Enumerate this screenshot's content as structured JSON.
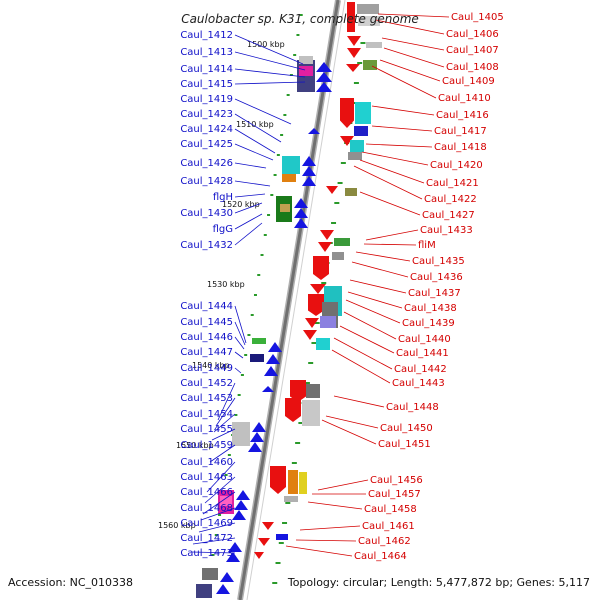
{
  "title": "Caulobacter sp. K31, complete genome",
  "accession": "Accession: NC_010338",
  "topology": "Topology: circular; Length: 5,477,872 bp; Genes: 5,117",
  "colors": {
    "left_label": "#1010c8",
    "right_label": "#d40000",
    "backbone": "#888888",
    "tick": "#2a9a2a",
    "blue_gene": "#1515e0",
    "red_gene": "#e81010"
  },
  "kbp_markers": [
    "1500 kbp",
    "1510 kbp",
    "1520 kbp",
    "1530 kbp",
    "1540 kbp",
    "1550 kbp",
    "1560 kbp"
  ],
  "left_labels": [
    "Caul_1412",
    "Caul_1413",
    "Caul_1414",
    "Caul_1415",
    "Caul_1419",
    "Caul_1423",
    "Caul_1424",
    "Caul_1425",
    "Caul_1426",
    "Caul_1428",
    "flgH",
    "Caul_1430",
    "flgG",
    "Caul_1432",
    "Caul_1444",
    "Caul_1445",
    "Caul_1446",
    "Caul_1447",
    "Caul_1449",
    "Caul_1452",
    "Caul_1453",
    "Caul_1454",
    "Caul_1455",
    "Caul_1459",
    "Caul_1460",
    "Caul_1463",
    "Caul_1466",
    "Caul_1468",
    "Caul_1469",
    "Caul_1472",
    "Caul_1473"
  ],
  "right_labels": [
    "Caul_1405",
    "Caul_1406",
    "Caul_1407",
    "Caul_1408",
    "Caul_1409",
    "Caul_1410",
    "Caul_1416",
    "Caul_1417",
    "Caul_1418",
    "Caul_1420",
    "Caul_1421",
    "Caul_1422",
    "Caul_1427",
    "Caul_1433",
    "fliM",
    "Caul_1435",
    "Caul_1436",
    "Caul_1437",
    "Caul_1438",
    "Caul_1439",
    "Caul_1440",
    "Caul_1441",
    "Caul_1442",
    "Caul_1443",
    "Caul_1448",
    "Caul_1450",
    "Caul_1451",
    "Caul_1456",
    "Caul_1457",
    "Caul_1458",
    "Caul_1461",
    "Caul_1462",
    "Caul_1464"
  ]
}
